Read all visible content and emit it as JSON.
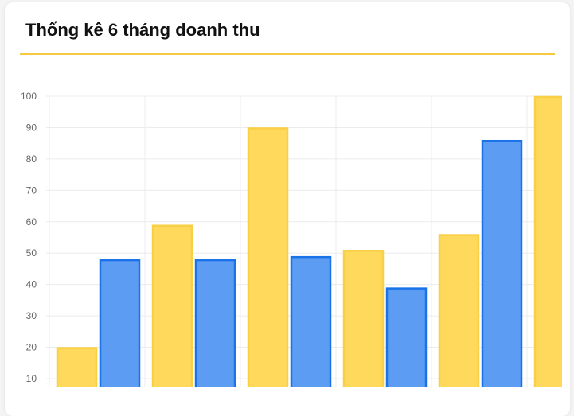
{
  "card": {
    "title": "Thống kê 6 tháng doanh thu"
  },
  "colors": {
    "accent_rule": "#f6c945",
    "series_yellow_fill": "#ffd95c",
    "series_yellow_stroke": "#f8cf45",
    "series_blue_fill": "#5d9cf3",
    "series_blue_stroke": "#1a73e8",
    "grid": "#ececec"
  },
  "chart_data": {
    "type": "bar",
    "title": "Thống kê 6 tháng doanh thu",
    "xlabel": "",
    "ylabel": "",
    "ylim": [
      10,
      100
    ],
    "yticks": [
      10,
      20,
      30,
      40,
      50,
      60,
      70,
      80,
      90,
      100
    ],
    "grid": true,
    "legend": "none",
    "series": [
      {
        "color": "#ffd95c",
        "values": [
          20,
          59,
          90,
          51,
          56,
          100
        ]
      },
      {
        "color": "#5d9cf3",
        "values": [
          48,
          48,
          49,
          39,
          86,
          null
        ]
      }
    ]
  }
}
